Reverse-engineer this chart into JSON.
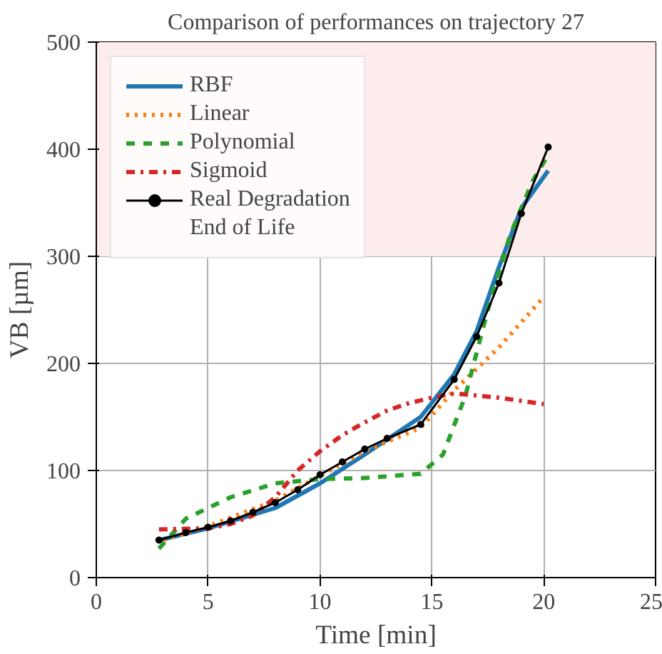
{
  "chart_data": {
    "type": "line",
    "title": "Comparison of performances on trajectory 27",
    "xlabel": "Time [min]",
    "ylabel": "VB [µm]",
    "xlim": [
      0,
      25
    ],
    "ylim": [
      0,
      500
    ],
    "xticks": [
      0,
      5,
      10,
      15,
      20,
      25
    ],
    "yticks": [
      0,
      100,
      200,
      300,
      400,
      500
    ],
    "grid": true,
    "legend": "top left",
    "series": [
      {
        "name": "RBF",
        "color": "#1f77b4",
        "line_style": "solid",
        "marker": "none",
        "x": [
          2.8,
          5,
          8,
          10,
          12,
          14.5,
          16,
          17,
          18,
          19,
          20.2
        ],
        "values": [
          35,
          46,
          65,
          88,
          115,
          150,
          190,
          230,
          290,
          345,
          380
        ]
      },
      {
        "name": "Linear",
        "color": "#ff7f0e",
        "line_style": "dotted",
        "marker": "none",
        "x": [
          3,
          5,
          8,
          10,
          12,
          14.5,
          16,
          18,
          20
        ],
        "values": [
          35,
          48,
          72,
          95,
          118,
          140,
          175,
          215,
          262
        ]
      },
      {
        "name": "Polynomial",
        "color": "#2ca02c",
        "line_style": "dashed",
        "marker": "none",
        "x": [
          2.8,
          4,
          6,
          8,
          10,
          12,
          14.5,
          15.5,
          16.5,
          17.5,
          18.5,
          19.5,
          20.2
        ],
        "values": [
          27,
          55,
          75,
          88,
          92,
          93,
          97,
          115,
          170,
          250,
          320,
          370,
          395
        ]
      },
      {
        "name": "Sigmoid",
        "color": "#d62728",
        "line_style": "dashdot",
        "marker": "none",
        "x": [
          2.8,
          5,
          6,
          7,
          8,
          9,
          10,
          11,
          12,
          13,
          14,
          15,
          16,
          18,
          20
        ],
        "values": [
          45,
          46,
          50,
          58,
          75,
          100,
          118,
          133,
          145,
          156,
          163,
          168,
          172,
          168,
          162
        ]
      },
      {
        "name": "Real Degradation",
        "color": "#000000",
        "line_style": "solid",
        "marker": "circle",
        "x": [
          2.8,
          4,
          5,
          6,
          7,
          8,
          9,
          10,
          11,
          12,
          13,
          14.5,
          16,
          17,
          18,
          19,
          20.2
        ],
        "values": [
          35,
          42,
          47,
          53,
          61,
          70,
          82,
          96,
          108,
          120,
          130,
          143,
          185,
          225,
          275,
          340,
          402
        ]
      }
    ],
    "bands": [
      {
        "axis": "y",
        "from": 300,
        "to": 500,
        "label": "End of Life",
        "color": "#fdecec"
      }
    ]
  }
}
